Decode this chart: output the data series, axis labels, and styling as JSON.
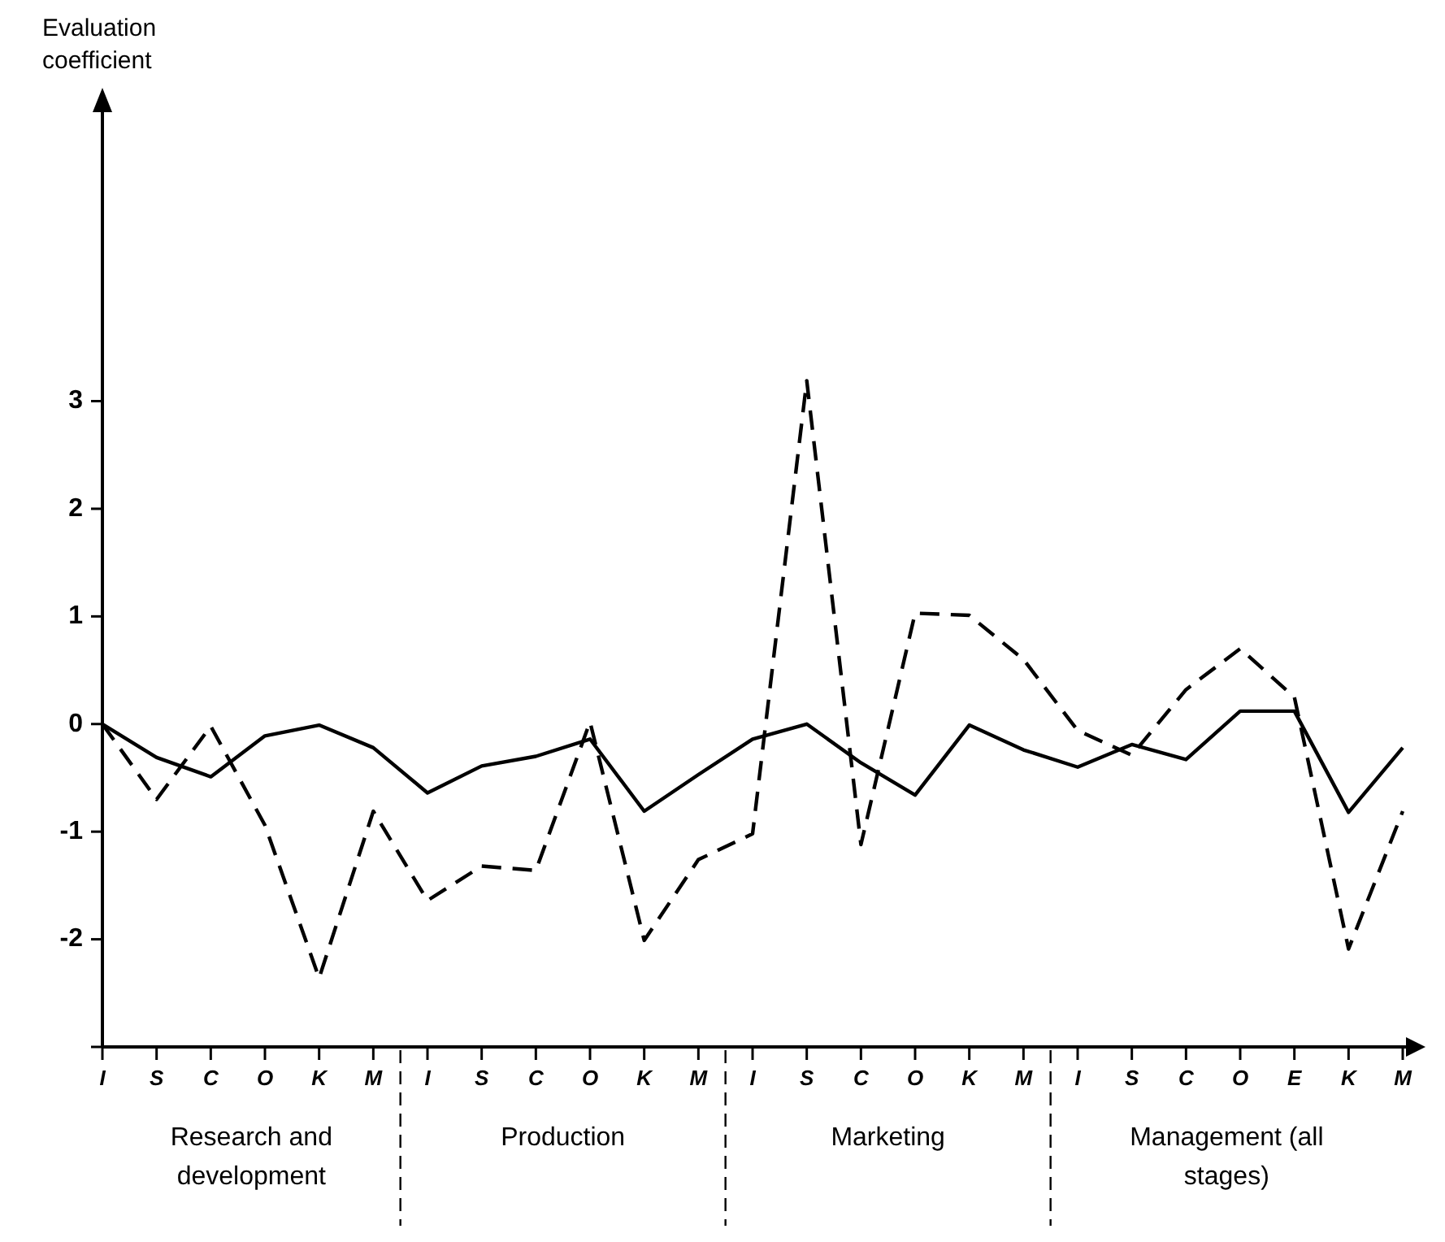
{
  "chart_data": {
    "type": "line",
    "ylabel": "Evaluation coefficient",
    "categories": [
      "I",
      "S",
      "C",
      "O",
      "K",
      "M",
      "I",
      "S",
      "C",
      "O",
      "K",
      "M",
      "I",
      "S",
      "C",
      "O",
      "K",
      "M",
      "I",
      "S",
      "C",
      "O",
      "E",
      "K",
      "M"
    ],
    "series": [
      {
        "color": "#000000",
        "line_style": "solid",
        "values": [
          0,
          -0.31,
          -0.49,
          -0.11,
          -0.01,
          -0.22,
          -0.64,
          -0.39,
          -0.3,
          -0.14,
          -0.81,
          -0.47,
          -0.14,
          0,
          -0.36,
          -0.66,
          -0.01,
          -0.24,
          -0.4,
          -0.19,
          -0.33,
          0.12,
          0.12,
          -0.82,
          -0.22
        ]
      },
      {
        "color": "#000000",
        "line_style": "dashed",
        "values": [
          0,
          -0.7,
          -0.02,
          -0.94,
          -2.36,
          -0.81,
          -1.64,
          -1.32,
          -1.36,
          0.02,
          -2.01,
          -1.26,
          -1.02,
          3.19,
          -1.12,
          1.03,
          1.01,
          0.6,
          -0.06,
          -0.29,
          0.32,
          0.7,
          0.25,
          -2.09,
          -0.81
        ]
      }
    ],
    "ylim": [
      -3,
      5.7
    ],
    "yticks": [
      {
        "value": -3,
        "label": null
      },
      -2,
      -1,
      0,
      1,
      2,
      3
    ],
    "annotations": [
      "Research and development",
      "Production",
      "Marketing",
      "Management (all stages)"
    ],
    "grid": false,
    "legend": false,
    "marker": "none"
  }
}
